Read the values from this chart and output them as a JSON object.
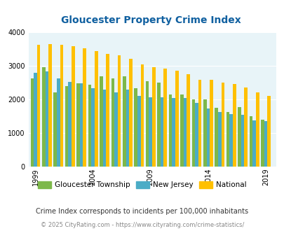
{
  "title": "Gloucester Property Crime Index",
  "years": [
    1999,
    2000,
    2001,
    2002,
    2003,
    2004,
    2005,
    2006,
    2007,
    2008,
    2009,
    2010,
    2011,
    2012,
    2013,
    2014,
    2015,
    2016,
    2017,
    2018,
    2019
  ],
  "gloucester": [
    2620,
    2960,
    2200,
    2400,
    2480,
    2430,
    2690,
    2620,
    2680,
    2340,
    2550,
    2490,
    2150,
    2140,
    2000,
    2000,
    1740,
    1620,
    1760,
    1490,
    1390
  ],
  "new_jersey": [
    2790,
    2830,
    2620,
    2530,
    2470,
    2340,
    2290,
    2200,
    2290,
    2100,
    2060,
    2060,
    2040,
    2030,
    1900,
    1730,
    1620,
    1560,
    1540,
    1370,
    1340
  ],
  "national": [
    3620,
    3650,
    3620,
    3590,
    3530,
    3450,
    3350,
    3310,
    3220,
    3050,
    2950,
    2910,
    2860,
    2760,
    2590,
    2580,
    2500,
    2460,
    2360,
    2200,
    2110
  ],
  "gloucester_color": "#7db84a",
  "new_jersey_color": "#4bacc6",
  "national_color": "#ffc000",
  "bg_color": "#e8f4f8",
  "title_color": "#1060a0",
  "ylim": [
    0,
    4000
  ],
  "yticks": [
    0,
    1000,
    2000,
    3000,
    4000
  ],
  "legend_labels": [
    "Gloucester Township",
    "New Jersey",
    "National"
  ],
  "footnote1": "Crime Index corresponds to incidents per 100,000 inhabitants",
  "footnote2": "© 2025 CityRating.com - https://www.cityrating.com/crime-statistics/",
  "xlabel_ticks": [
    1999,
    2004,
    2009,
    2014,
    2019
  ]
}
